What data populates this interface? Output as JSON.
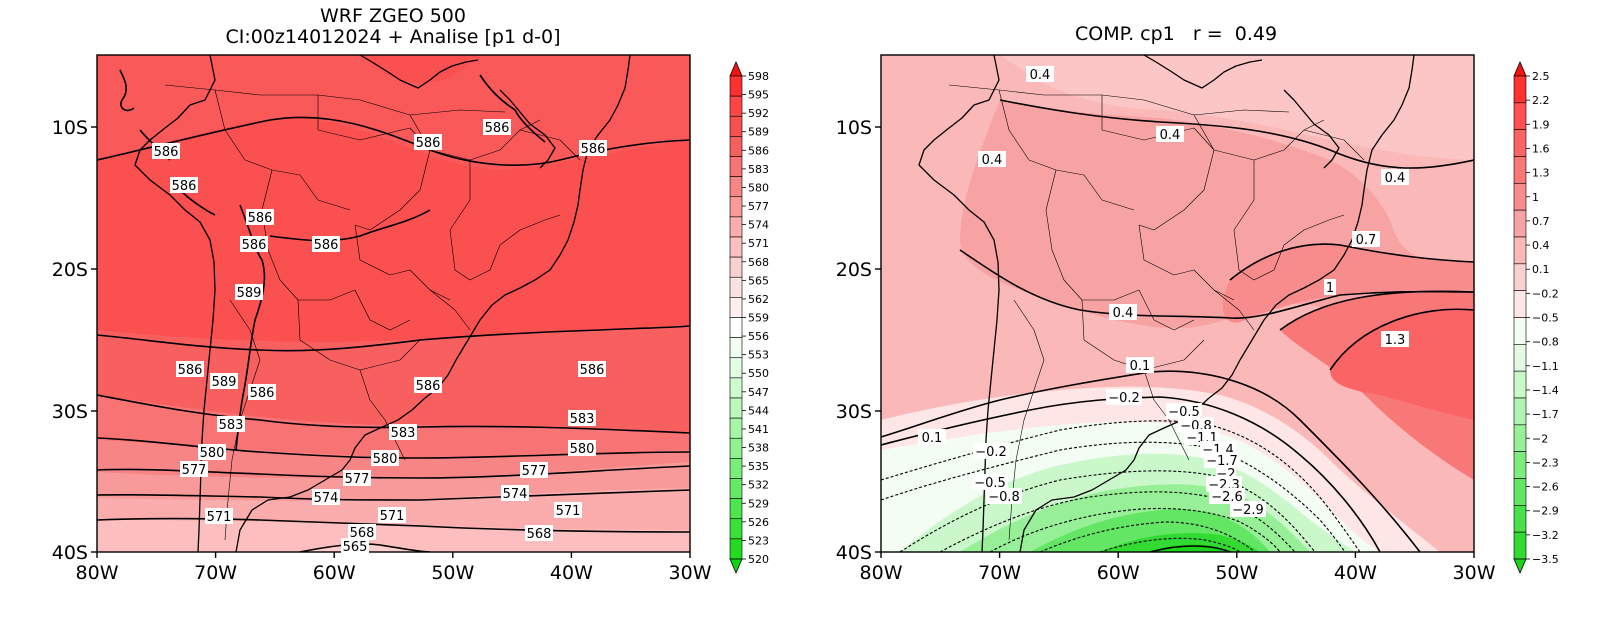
{
  "panels": [
    {
      "id": "left",
      "title_line1": "WRF ZGEO 500",
      "title_line2": "CI:00z14012024 + Analise  [p1 d-0]",
      "x_ticks": [
        "80W",
        "70W",
        "60W",
        "50W",
        "40W",
        "30W"
      ],
      "y_ticks": [
        "10S",
        "20S",
        "30S",
        "40S"
      ],
      "colorbar": {
        "labels": [
          "598",
          "595",
          "592",
          "589",
          "586",
          "583",
          "580",
          "577",
          "574",
          "571",
          "568",
          "565",
          "562",
          "559",
          "556",
          "553",
          "550",
          "547",
          "544",
          "541",
          "538",
          "535",
          "532",
          "529",
          "526",
          "523",
          "520"
        ],
        "colors": [
          "#ff1010",
          "#ff3030",
          "#ff4646",
          "#fa5050",
          "#f86060",
          "#f87373",
          "#f88585",
          "#f89a9a",
          "#fbadad",
          "#fcbebe",
          "#fdd0d0",
          "#fee1e1",
          "#fff0f0",
          "#ffffff",
          "#f0fff0",
          "#e1fee1",
          "#cffccf",
          "#bcf9bc",
          "#a6f6a6",
          "#90f290",
          "#7aee7a",
          "#64ea64",
          "#4ee54e",
          "#38e038",
          "#22dc22",
          "#10d510"
        ]
      },
      "contour_labels": [
        "586",
        "586",
        "586",
        "586",
        "586",
        "586",
        "586",
        "586",
        "589",
        "586",
        "589",
        "586",
        "586",
        "586",
        "583",
        "583",
        "583",
        "580",
        "580",
        "580",
        "577",
        "577",
        "577",
        "574",
        "574",
        "571",
        "571",
        "571",
        "568",
        "568",
        "565"
      ]
    },
    {
      "id": "right",
      "title_line1": "COMP. cp1   r =  0.49",
      "x_ticks": [
        "80W",
        "70W",
        "60W",
        "50W",
        "40W",
        "30W"
      ],
      "y_ticks": [
        "10S",
        "20S",
        "30S",
        "40S"
      ],
      "colorbar": {
        "labels": [
          "2.5",
          "2.2",
          "1.9",
          "1.6",
          "1.3",
          "1",
          "0.7",
          "0.4",
          "0.1",
          "−0.2",
          "−0.5",
          "−0.8",
          "−1.1",
          "−1.4",
          "−1.7",
          "−2",
          "−2.3",
          "−2.6",
          "−2.9",
          "−3.2",
          "−3.5"
        ],
        "colors": [
          "#ff1010",
          "#ff3232",
          "#ff4f4f",
          "#fb6464",
          "#f87878",
          "#f88c8c",
          "#f8a3a3",
          "#fbb8b8",
          "#fdd0d0",
          "#fee6e6",
          "#f4fdf4",
          "#e3fbe3",
          "#cbf8cb",
          "#b1f4b1",
          "#97f097",
          "#7deb7d",
          "#63e663",
          "#4ae04a",
          "#32da32",
          "#1ad31a"
        ]
      },
      "contour_labels": [
        "0.4",
        "0.4",
        "0.4",
        "0.4",
        "0.7",
        "1",
        "1.3",
        "0.4",
        "0.1",
        "0.1",
        "−0.2",
        "−0.2",
        "−0.5",
        "−0.8",
        "−1.1",
        "−1.4",
        "−1.7",
        "−2",
        "−2.3",
        "−2.6",
        "−2.9",
        "−0.5",
        "−0.8"
      ]
    }
  ]
}
